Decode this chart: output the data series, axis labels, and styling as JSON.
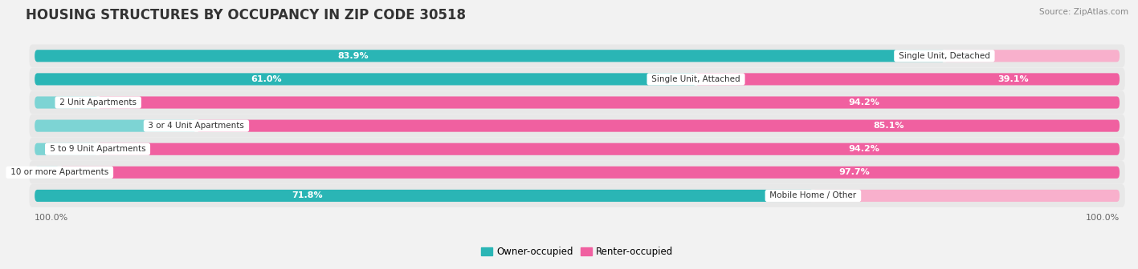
{
  "title": "HOUSING STRUCTURES BY OCCUPANCY IN ZIP CODE 30518",
  "source": "Source: ZipAtlas.com",
  "categories": [
    "Single Unit, Detached",
    "Single Unit, Attached",
    "2 Unit Apartments",
    "3 or 4 Unit Apartments",
    "5 to 9 Unit Apartments",
    "10 or more Apartments",
    "Mobile Home / Other"
  ],
  "owner_pct": [
    83.9,
    61.0,
    5.9,
    14.9,
    5.8,
    2.3,
    71.8
  ],
  "renter_pct": [
    16.2,
    39.1,
    94.2,
    85.1,
    94.2,
    97.7,
    28.3
  ],
  "owner_color_strong": "#2ab5b5",
  "owner_color_light": "#7dd4d4",
  "renter_color_strong": "#f060a0",
  "renter_color_light": "#f8b0cc",
  "bg_color": "#f2f2f2",
  "row_bg_color": "#e8e8e8",
  "row_bg_alt_color": "#dcdcdc",
  "title_fontsize": 12,
  "label_fontsize": 8,
  "source_fontsize": 7.5,
  "legend_fontsize": 8.5,
  "x_axis_label_left": "100.0%",
  "x_axis_label_right": "100.0%"
}
